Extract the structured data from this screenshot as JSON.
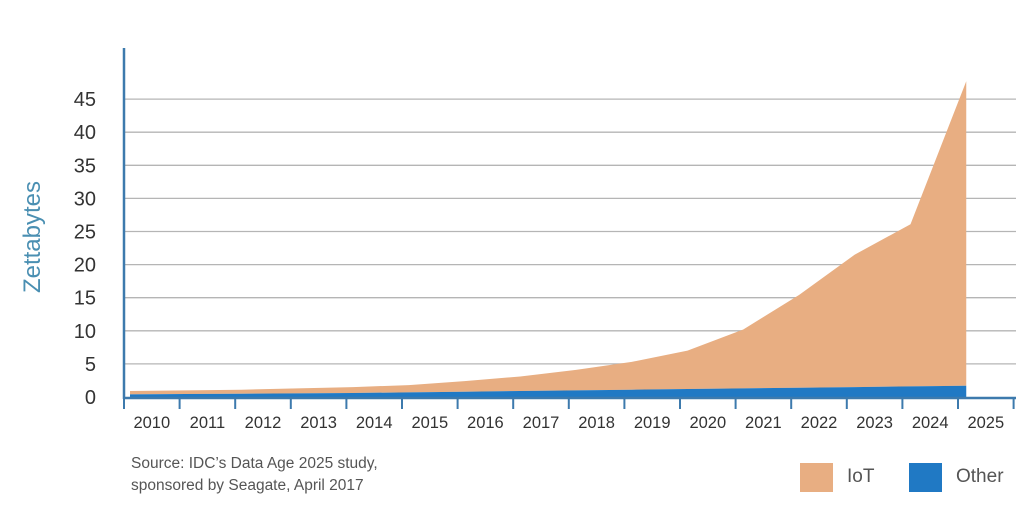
{
  "chart_data": {
    "type": "area",
    "stacked": true,
    "ylabel": "Zettabytes",
    "xlabel": "",
    "title": "",
    "categories": [
      "2010",
      "2011",
      "2012",
      "2013",
      "2014",
      "2015",
      "2016",
      "2017",
      "2018",
      "2019",
      "2020",
      "2021",
      "2022",
      "2023",
      "2024",
      "2025"
    ],
    "x": [
      2010,
      2011,
      2012,
      2013,
      2014,
      2015,
      2016,
      2017,
      2018,
      2019,
      2020,
      2021,
      2022,
      2023,
      2024,
      2025
    ],
    "ylim": [
      0,
      50
    ],
    "yticks": [
      0,
      5,
      10,
      15,
      20,
      25,
      30,
      35,
      40,
      45
    ],
    "grid": true,
    "series": [
      {
        "name": "Other",
        "values": [
          0.4,
          0.45,
          0.5,
          0.55,
          0.6,
          0.7,
          0.8,
          0.9,
          1.0,
          1.1,
          1.2,
          1.3,
          1.4,
          1.5,
          1.6,
          1.7
        ],
        "color": "#2079c4"
      },
      {
        "name": "IoT",
        "values": [
          0.5,
          0.55,
          0.6,
          0.75,
          0.9,
          1.1,
          1.6,
          2.2,
          3.1,
          4.2,
          5.8,
          8.9,
          14.0,
          20.0,
          24.5,
          46.0
        ],
        "color": "#e8ae82"
      }
    ],
    "legend_position": "bottom-right",
    "source_lines": [
      "Source: IDC’s Data Age 2025 study,",
      "sponsored by Seagate, April 2017"
    ]
  },
  "colors": {
    "axis": "#3d7aad",
    "ylabel": "#4a8fb2",
    "grid": "#b5b5b5",
    "tick_text": "#333333"
  }
}
